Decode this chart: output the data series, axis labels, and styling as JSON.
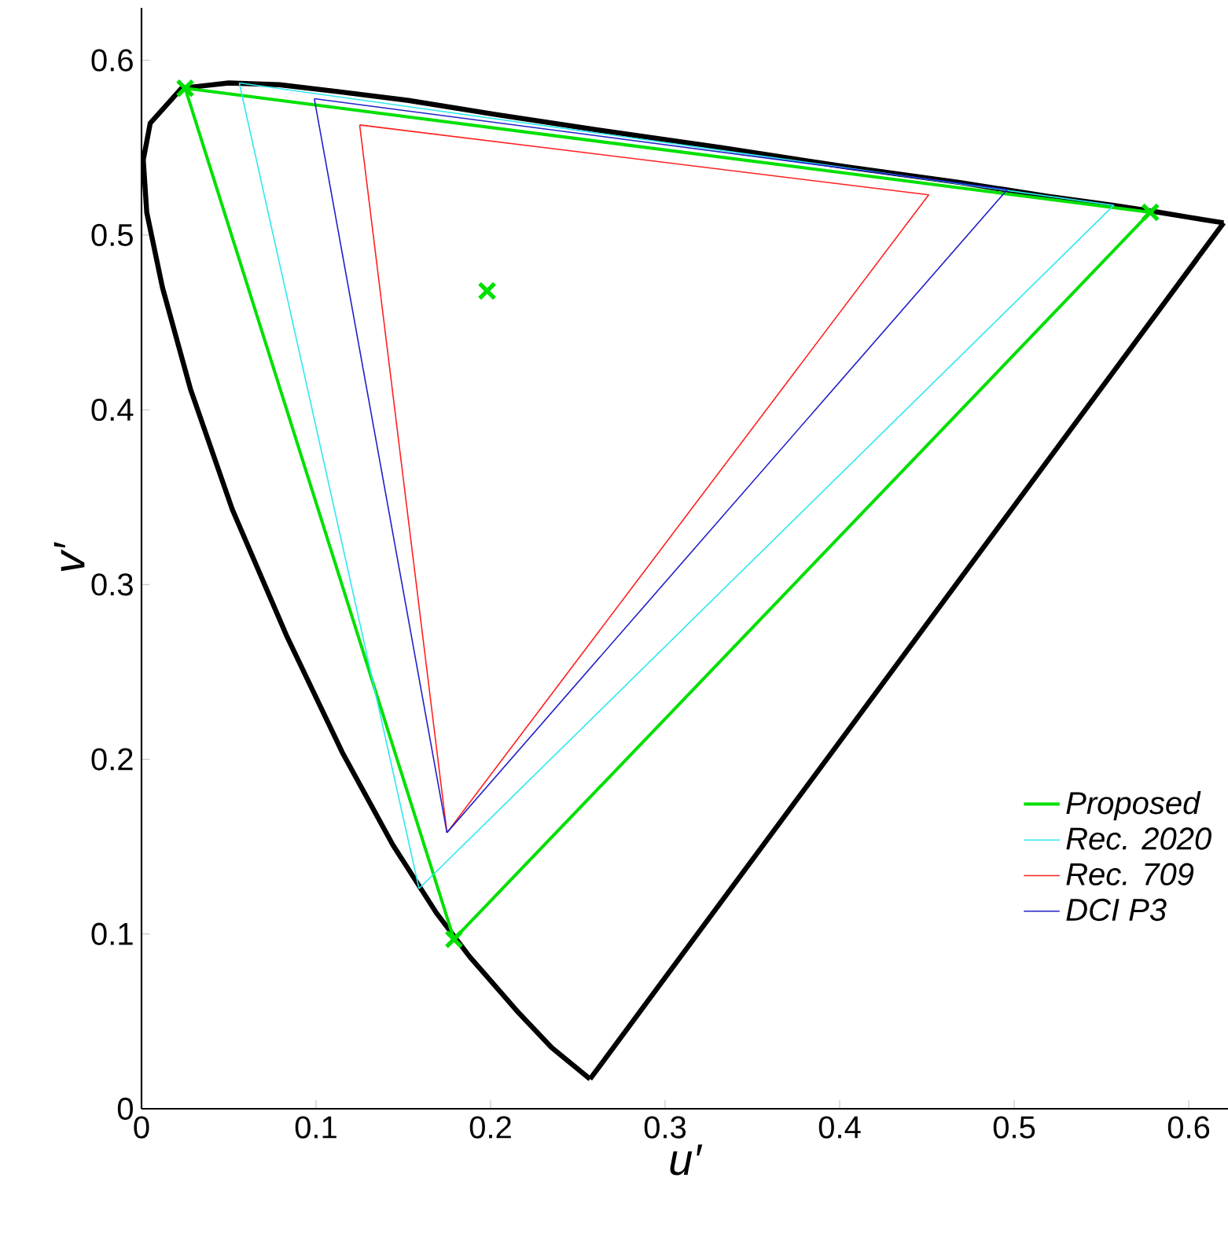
{
  "chart_data": {
    "type": "line",
    "xlabel": "u′",
    "ylabel": "v′",
    "xlim": [
      0,
      0.6225
    ],
    "ylim": [
      0,
      0.63
    ],
    "xticks": [
      0,
      0.1,
      0.2,
      0.3,
      0.4,
      0.5,
      0.6
    ],
    "yticks": [
      0,
      0.1,
      0.2,
      0.3,
      0.4,
      0.5,
      0.6
    ],
    "grid": false,
    "legend": "bottom right",
    "series": [
      {
        "color": "#000000",
        "x": [
          0.257,
          0.235,
          0.216,
          0.188,
          0.169,
          0.144,
          0.115,
          0.083,
          0.052,
          0.028,
          0.012,
          0.003,
          0.001,
          0.005,
          0.023,
          0.05,
          0.079,
          0.113,
          0.153,
          0.203,
          0.262,
          0.332,
          0.404,
          0.469,
          0.52,
          0.557,
          0.583,
          0.601,
          0.62
        ],
        "values": [
          0.017,
          0.035,
          0.055,
          0.087,
          0.112,
          0.151,
          0.204,
          0.271,
          0.343,
          0.412,
          0.47,
          0.513,
          0.543,
          0.564,
          0.584,
          0.587,
          0.586,
          0.582,
          0.577,
          0.569,
          0.56,
          0.55,
          0.539,
          0.53,
          0.522,
          0.517,
          0.513,
          0.51,
          0.507
        ]
      },
      {
        "color": "#000000",
        "x": [
          0.62,
          0.257
        ],
        "values": [
          0.507,
          0.017
        ]
      },
      {
        "name": "Proposed",
        "color": "#00e000",
        "x": [
          0.025,
          0.578,
          0.179,
          0.025
        ],
        "values": [
          0.584,
          0.513,
          0.097,
          0.584
        ]
      },
      {
        "name": "Rec. 2020",
        "color": "#30e8f0",
        "x": [
          0.056,
          0.557,
          0.159,
          0.056
        ],
        "values": [
          0.587,
          0.517,
          0.126,
          0.587
        ]
      },
      {
        "name": "Rec. 709",
        "color": "#ff2020",
        "x": [
          0.125,
          0.451,
          0.175,
          0.125
        ],
        "values": [
          0.563,
          0.523,
          0.158,
          0.563
        ]
      },
      {
        "name": "DCI P3",
        "color": "#2020c8",
        "x": [
          0.099,
          0.496,
          0.175,
          0.099
        ],
        "values": [
          0.578,
          0.526,
          0.158,
          0.578
        ]
      },
      {
        "type": "scatter",
        "marker": "cross",
        "color": "#00e000",
        "x": [
          0.025,
          0.578,
          0.179,
          0.198
        ],
        "values": [
          0.584,
          0.513,
          0.097,
          0.468
        ]
      }
    ]
  }
}
